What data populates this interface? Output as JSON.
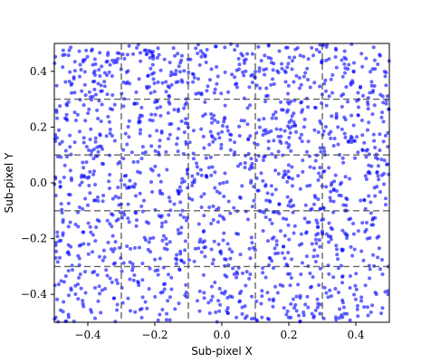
{
  "chart_data": {
    "type": "scatter",
    "title": "",
    "xlabel": "Sub-pixel X",
    "ylabel": "Sub-pixel Y",
    "xlim": [
      -0.5,
      0.5
    ],
    "ylim": [
      -0.5,
      0.5
    ],
    "xticks": [
      -0.4,
      -0.2,
      0.0,
      0.2,
      0.4
    ],
    "yticks": [
      -0.4,
      -0.2,
      0.0,
      0.2,
      0.4
    ],
    "xtick_labels": [
      "−0.4",
      "−0.2",
      "0.0",
      "0.2",
      "0.4"
    ],
    "ytick_labels": [
      "−0.4",
      "−0.2",
      "0.0",
      "0.2",
      "0.4"
    ],
    "grid_lines_x": [
      -0.3,
      -0.1,
      0.1,
      0.3
    ],
    "grid_lines_y": [
      -0.3,
      -0.1,
      0.1,
      0.3
    ],
    "grid": "dashed",
    "point_color": "#0000ff",
    "point_alpha": 0.6,
    "point_count": 1600,
    "density_note_top": "higher",
    "x": [],
    "y": []
  }
}
